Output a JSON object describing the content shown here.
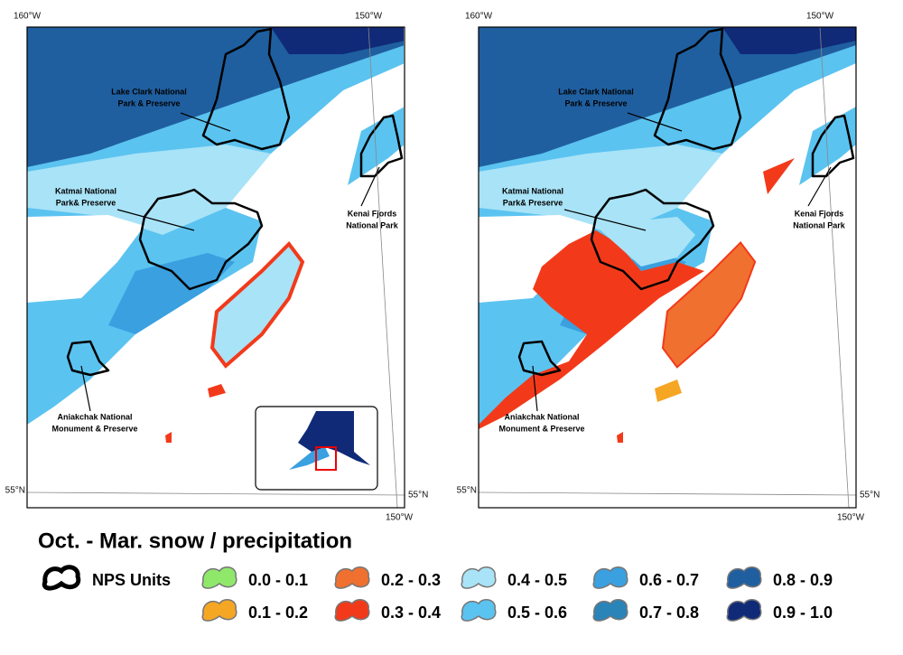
{
  "maps": [
    {
      "graticule": {
        "top_left": "160°W",
        "top_right": "150°W",
        "left": "55°N",
        "right": "55°N",
        "bottom": "150°W"
      },
      "parks": [
        {
          "lines": [
            "Lake Clark National",
            "Park & Preserve"
          ]
        },
        {
          "lines": [
            "Katmai National",
            "Park& Preserve"
          ]
        },
        {
          "lines": [
            "Kenai Fjords",
            "National Park"
          ]
        },
        {
          "lines": [
            "Aniakchak National",
            "Monument & Preserve"
          ]
        }
      ]
    },
    {
      "graticule": {
        "top_left": "160°W",
        "top_right": "150°W",
        "left": "55°N",
        "right": "55°N",
        "bottom": "150°W"
      },
      "parks": [
        {
          "lines": [
            "Lake Clark National",
            "Park & Preserve"
          ]
        },
        {
          "lines": [
            "Katmai National",
            "Park& Preserve"
          ]
        },
        {
          "lines": [
            "Kenai Fjords",
            "National Park"
          ]
        },
        {
          "lines": [
            "Aniakchak National",
            "Monument & Preserve"
          ]
        }
      ]
    }
  ],
  "legend": {
    "title": "Oct. - Mar. snow / precipitation",
    "outline_label": "NPS Units",
    "items": [
      {
        "label": "0.0 - 0.1",
        "color": "#8fe86a"
      },
      {
        "label": "0.1 - 0.2",
        "color": "#f5a623"
      },
      {
        "label": "0.2 - 0.3",
        "color": "#f07030"
      },
      {
        "label": "0.3 - 0.4",
        "color": "#f23a1a"
      },
      {
        "label": "0.4 - 0.5",
        "color": "#a9e3f7"
      },
      {
        "label": "0.5 - 0.6",
        "color": "#5bc3f0"
      },
      {
        "label": "0.6 - 0.7",
        "color": "#3aa0e0"
      },
      {
        "label": "0.7 - 0.8",
        "color": "#2a84b8"
      },
      {
        "label": "0.8 - 0.9",
        "color": "#1f5fa0"
      },
      {
        "label": "0.9 - 1.0",
        "color": "#102a78"
      }
    ]
  }
}
